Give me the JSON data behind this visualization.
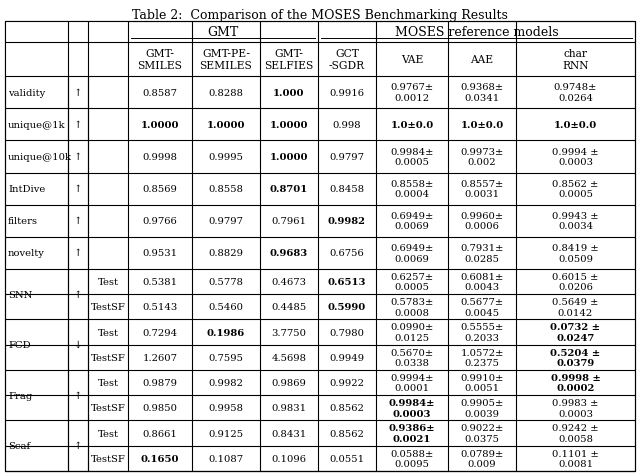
{
  "title": "Table 2:  Comparison of the MOSES Benchmarking Results",
  "rows": [
    {
      "metric": "validity",
      "arrow": "↑",
      "sub": "",
      "vals": [
        "0.8587",
        "0.8288",
        "1.000",
        "0.9916",
        "0.9767±\n0.0012",
        "0.9368±\n0.0341",
        "0.9748±\n0.0264"
      ],
      "bold": [
        false,
        false,
        true,
        false,
        false,
        false,
        false
      ]
    },
    {
      "metric": "unique@1k",
      "arrow": "↑",
      "sub": "",
      "vals": [
        "1.0000",
        "1.0000",
        "1.0000",
        "0.998",
        "1.0±0.0",
        "1.0±0.0",
        "1.0±0.0"
      ],
      "bold": [
        true,
        true,
        true,
        false,
        true,
        true,
        true
      ]
    },
    {
      "metric": "unique@10k",
      "arrow": "↑",
      "sub": "",
      "vals": [
        "0.9998",
        "0.9995",
        "1.0000",
        "0.9797",
        "0.9984±\n0.0005",
        "0.9973±\n0.002",
        "0.9994 ±\n0.0003"
      ],
      "bold": [
        false,
        false,
        true,
        false,
        false,
        false,
        false
      ]
    },
    {
      "metric": "IntDive",
      "arrow": "↑",
      "sub": "",
      "vals": [
        "0.8569",
        "0.8558",
        "0.8701",
        "0.8458",
        "0.8558±\n0.0004",
        "0.8557±\n0.0031",
        "0.8562 ±\n0.0005"
      ],
      "bold": [
        false,
        false,
        true,
        false,
        false,
        false,
        false
      ]
    },
    {
      "metric": "filters",
      "arrow": "↑",
      "sub": "",
      "vals": [
        "0.9766",
        "0.9797",
        "0.7961",
        "0.9982",
        "0.6949±\n0.0069",
        "0.9960±\n0.0006",
        "0.9943 ±\n0.0034"
      ],
      "bold": [
        false,
        false,
        false,
        true,
        false,
        false,
        false
      ]
    },
    {
      "metric": "novelty",
      "arrow": "↑",
      "sub": "",
      "vals": [
        "0.9531",
        "0.8829",
        "0.9683",
        "0.6756",
        "0.6949±\n0.0069",
        "0.7931±\n0.0285",
        "0.8419 ±\n0.0509"
      ],
      "bold": [
        false,
        false,
        true,
        false,
        false,
        false,
        false
      ]
    },
    {
      "metric": "SNN",
      "arrow": "↑",
      "sub": "Test",
      "vals": [
        "0.5381",
        "0.5778",
        "0.4673",
        "0.6513",
        "0.6257±\n0.0005",
        "0.6081±\n0.0043",
        "0.6015 ±\n0.0206"
      ],
      "bold": [
        false,
        false,
        false,
        true,
        false,
        false,
        false
      ]
    },
    {
      "metric": "SNN",
      "arrow": "↑",
      "sub": "TestSF",
      "vals": [
        "0.5143",
        "0.5460",
        "0.4485",
        "0.5990",
        "0.5783±\n0.0008",
        "0.5677±\n0.0045",
        "0.5649 ±\n0.0142"
      ],
      "bold": [
        false,
        false,
        false,
        true,
        false,
        false,
        false
      ]
    },
    {
      "metric": "FCD",
      "arrow": "↓",
      "sub": "Test",
      "vals": [
        "0.7294",
        "0.1986",
        "3.7750",
        "0.7980",
        "0.0990±\n0.0125",
        "0.5555±\n0.2033",
        "0.0732 ±\n0.0247"
      ],
      "bold": [
        false,
        true,
        false,
        false,
        false,
        false,
        true
      ]
    },
    {
      "metric": "FCD",
      "arrow": "↓",
      "sub": "TestSF",
      "vals": [
        "1.2607",
        "0.7595",
        "4.5698",
        "0.9949",
        "0.5670±\n0.0338",
        "1.0572±\n0.2375",
        "0.5204 ±\n0.0379"
      ],
      "bold": [
        false,
        false,
        false,
        false,
        false,
        false,
        true
      ]
    },
    {
      "metric": "Frag",
      "arrow": "↑",
      "sub": "Test",
      "vals": [
        "0.9879",
        "0.9982",
        "0.9869",
        "0.9922",
        "0.9994±\n0.0001",
        "0.9910±\n0.0051",
        "0.9998 ±\n0.0002"
      ],
      "bold": [
        false,
        false,
        false,
        false,
        false,
        false,
        true
      ]
    },
    {
      "metric": "Frag",
      "arrow": "↑",
      "sub": "TestSF",
      "vals": [
        "0.9850",
        "0.9958",
        "0.9831",
        "0.8562",
        "0.9984±\n0.0003",
        "0.9905±\n0.0039",
        "0.9983 ±\n0.0003"
      ],
      "bold": [
        false,
        false,
        false,
        false,
        true,
        false,
        false
      ]
    },
    {
      "metric": "Scaf",
      "arrow": "↑",
      "sub": "Test",
      "vals": [
        "0.8661",
        "0.9125",
        "0.8431",
        "0.8562",
        "0.9386±\n0.0021",
        "0.9022±\n0.0375",
        "0.9242 ±\n0.0058"
      ],
      "bold": [
        false,
        false,
        false,
        false,
        true,
        false,
        false
      ]
    },
    {
      "metric": "Scaf",
      "arrow": "↑",
      "sub": "TestSF",
      "vals": [
        "0.1650",
        "0.1087",
        "0.1096",
        "0.0551",
        "0.0588±\n0.0095",
        "0.0789±\n0.009",
        "0.1101 ±\n0.0081"
      ],
      "bold": [
        true,
        false,
        false,
        false,
        false,
        false,
        false
      ]
    }
  ],
  "bg_color": "#ffffff",
  "font_size": 7.2,
  "title_font_size": 9.0
}
